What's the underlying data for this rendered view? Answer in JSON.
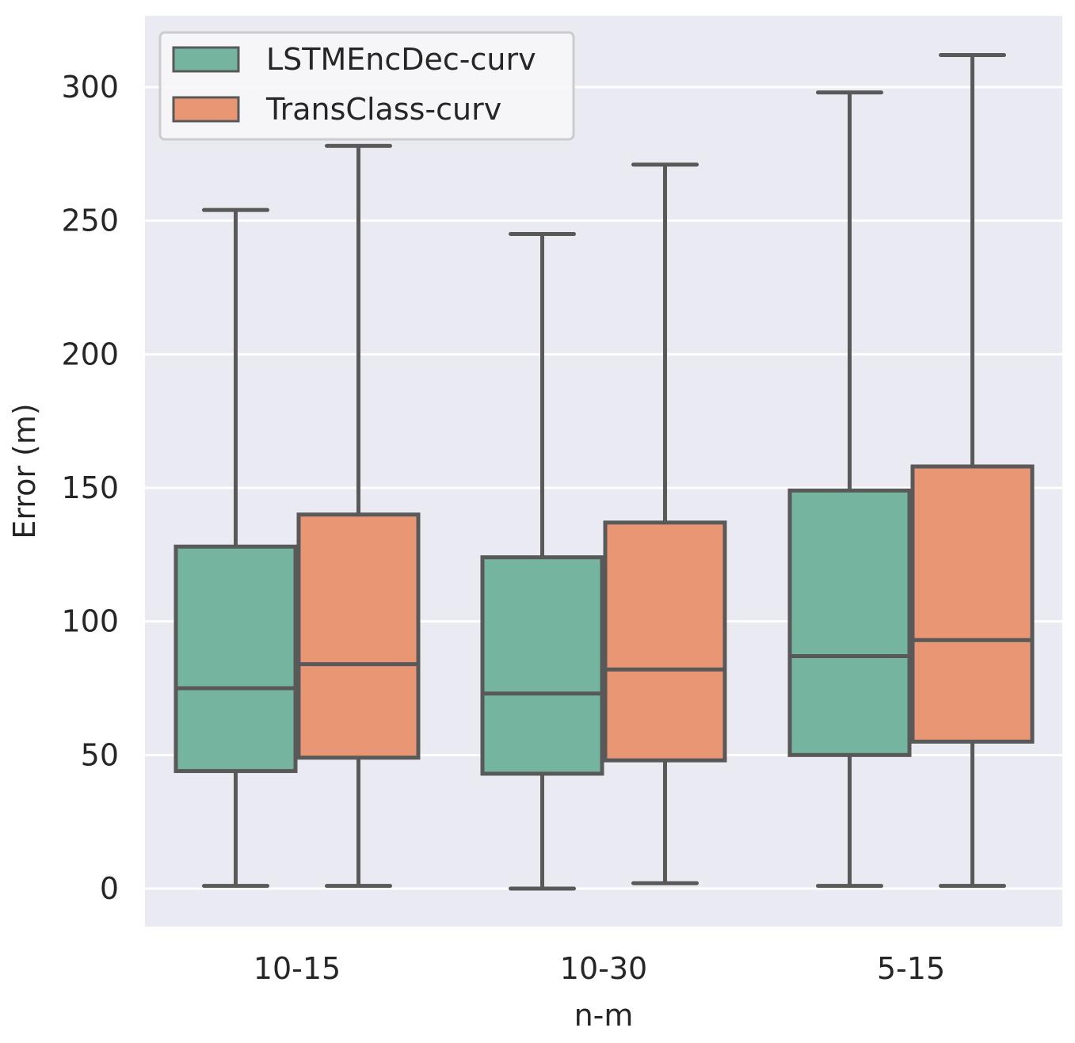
{
  "chart_data": {
    "type": "box",
    "xlabel": "n-m",
    "ylabel": "Error (m)",
    "categories": [
      "10-15",
      "10-30",
      "5-15"
    ],
    "ylim": [
      -15,
      325
    ],
    "yticks": [
      0,
      50,
      100,
      150,
      200,
      250,
      300
    ],
    "grid": true,
    "legend_position": "top-left",
    "series": [
      {
        "name": "LSTMEncDec-curv",
        "color": "#75b5a0",
        "boxes": [
          {
            "whisker_low": 1,
            "q1": 44,
            "median": 75,
            "q3": 128,
            "whisker_high": 254
          },
          {
            "whisker_low": 0,
            "q1": 43,
            "median": 73,
            "q3": 124,
            "whisker_high": 245
          },
          {
            "whisker_low": 1,
            "q1": 50,
            "median": 87,
            "q3": 149,
            "whisker_high": 298
          }
        ]
      },
      {
        "name": "TransClass-curv",
        "color": "#e99675",
        "boxes": [
          {
            "whisker_low": 1,
            "q1": 49,
            "median": 84,
            "q3": 140,
            "whisker_high": 278
          },
          {
            "whisker_low": 2,
            "q1": 48,
            "median": 82,
            "q3": 137,
            "whisker_high": 271
          },
          {
            "whisker_low": 1,
            "q1": 55,
            "median": 93,
            "q3": 158,
            "whisker_high": 312
          }
        ]
      }
    ]
  },
  "style": {
    "plot_background": "#eaeaf2",
    "grid_color": "#ffffff",
    "box_edge_color": "#595959"
  }
}
